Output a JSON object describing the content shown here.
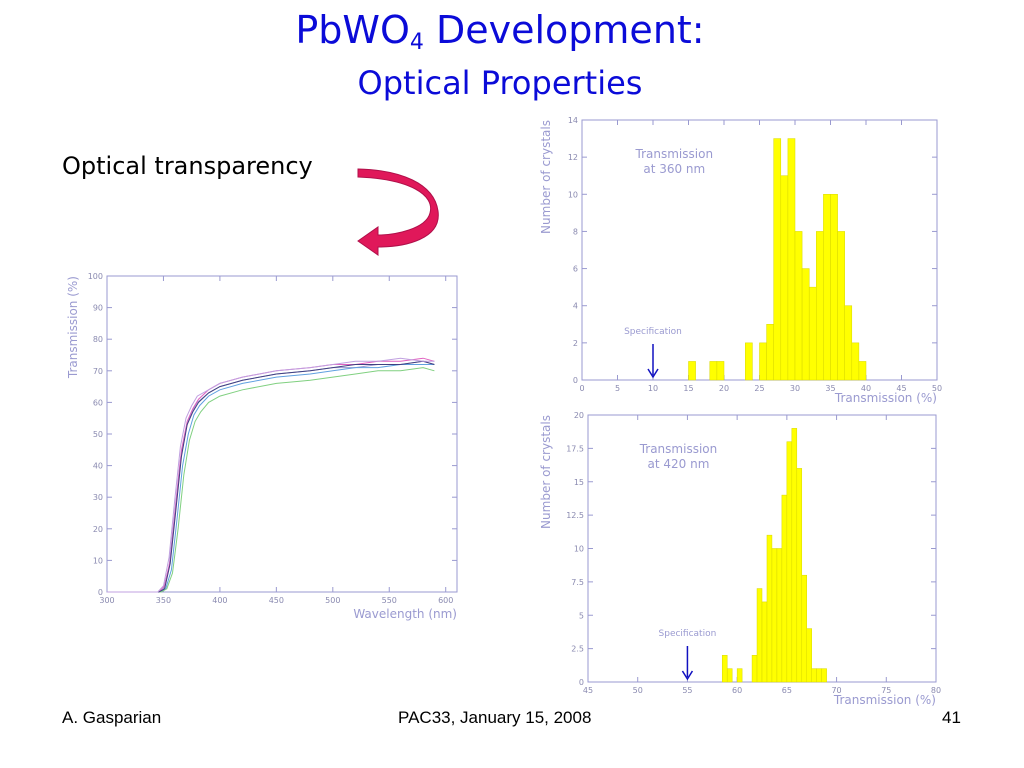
{
  "slide": {
    "title_main": "PbWO",
    "title_sub": "4",
    "title_rest": " Development:",
    "subtitle": "Optical Properties",
    "bullet": "Optical transparency",
    "footer_left": "A. Gasparian",
    "footer_center": "PAC33, January 15, 2008",
    "footer_right": "41"
  },
  "colors": {
    "title": "#0b0bd8",
    "arrow": "#e0185a",
    "bars": "#ffff00",
    "spec_arrow": "#1010c0",
    "axis_text": "#9a9ad0"
  },
  "chart_data": [
    {
      "type": "line",
      "xlabel": "Wavelength (nm)",
      "ylabel": "Transmission (%)",
      "xlim": [
        300,
        610
      ],
      "ylim": [
        0,
        100
      ],
      "xticks": [
        300,
        350,
        400,
        450,
        500,
        550,
        600
      ],
      "yticks": [
        0,
        10,
        20,
        30,
        40,
        50,
        60,
        70,
        80,
        90,
        100
      ],
      "series": [
        {
          "color": "#9a9ad0",
          "x": [
            300,
            340,
            345,
            350,
            355,
            360,
            365,
            370,
            375,
            380,
            390,
            400,
            420,
            450,
            480,
            500,
            520,
            540,
            560,
            580,
            590
          ],
          "y": [
            0,
            0,
            0,
            1,
            8,
            25,
            42,
            52,
            57,
            60,
            63,
            65,
            67,
            69,
            70,
            71,
            71,
            72,
            72,
            73,
            72
          ]
        },
        {
          "color": "#e060c0",
          "x": [
            300,
            340,
            346,
            351,
            356,
            361,
            366,
            371,
            376,
            381,
            390,
            400,
            420,
            450,
            480,
            500,
            520,
            540,
            560,
            580,
            590
          ],
          "y": [
            0,
            0,
            0,
            2,
            10,
            28,
            45,
            54,
            58,
            61,
            64,
            66,
            68,
            70,
            71,
            72,
            72,
            73,
            73,
            74,
            73
          ]
        },
        {
          "color": "#60a0e0",
          "x": [
            300,
            340,
            347,
            352,
            357,
            362,
            367,
            372,
            377,
            382,
            390,
            400,
            420,
            450,
            480,
            500,
            520,
            540,
            560,
            580,
            590
          ],
          "y": [
            0,
            0,
            0,
            1,
            7,
            23,
            40,
            50,
            56,
            59,
            62,
            64,
            66,
            68,
            69,
            70,
            71,
            71,
            72,
            72,
            72
          ]
        },
        {
          "color": "#80d080",
          "x": [
            300,
            340,
            348,
            353,
            358,
            363,
            368,
            373,
            378,
            383,
            390,
            400,
            420,
            450,
            480,
            500,
            520,
            540,
            560,
            580,
            590
          ],
          "y": [
            0,
            0,
            0,
            1,
            6,
            20,
            37,
            48,
            54,
            57,
            60,
            62,
            64,
            66,
            67,
            68,
            69,
            70,
            70,
            71,
            70
          ]
        },
        {
          "color": "#404080",
          "x": [
            300,
            340,
            346,
            351,
            356,
            361,
            366,
            371,
            376,
            381,
            390,
            400,
            420,
            450,
            480,
            500,
            520,
            540,
            560,
            580,
            590
          ],
          "y": [
            0,
            0,
            0,
            1,
            9,
            26,
            43,
            53,
            57,
            60,
            63,
            65,
            67,
            69,
            70,
            71,
            72,
            72,
            72,
            73,
            72
          ]
        },
        {
          "color": "#c0a0e0",
          "x": [
            300,
            340,
            345,
            350,
            355,
            360,
            365,
            370,
            375,
            380,
            390,
            400,
            420,
            450,
            480,
            500,
            520,
            540,
            560,
            580,
            590
          ],
          "y": [
            0,
            0,
            0,
            2,
            11,
            29,
            46,
            55,
            59,
            62,
            64,
            66,
            68,
            70,
            71,
            72,
            73,
            73,
            74,
            73,
            73
          ]
        }
      ]
    },
    {
      "type": "bar",
      "annotation": [
        "Transmission",
        "at 360 nm"
      ],
      "spec_label": "Specification",
      "spec_value": 10,
      "xlabel": "Transmission (%)",
      "ylabel": "Number of crystals",
      "xlim": [
        0,
        50
      ],
      "ylim": [
        0,
        14
      ],
      "xticks": [
        0,
        5,
        10,
        15,
        20,
        25,
        30,
        35,
        40,
        45,
        50
      ],
      "yticks": [
        0,
        2,
        4,
        6,
        8,
        10,
        12,
        14
      ],
      "bin_width": 1,
      "bins": [
        {
          "x": 15,
          "v": 1
        },
        {
          "x": 18,
          "v": 1
        },
        {
          "x": 19,
          "v": 1
        },
        {
          "x": 23,
          "v": 2
        },
        {
          "x": 24,
          "v": 0
        },
        {
          "x": 25,
          "v": 2
        },
        {
          "x": 26,
          "v": 3
        },
        {
          "x": 27,
          "v": 13
        },
        {
          "x": 28,
          "v": 11
        },
        {
          "x": 29,
          "v": 13
        },
        {
          "x": 30,
          "v": 8
        },
        {
          "x": 31,
          "v": 6
        },
        {
          "x": 32,
          "v": 5
        },
        {
          "x": 33,
          "v": 8
        },
        {
          "x": 34,
          "v": 10
        },
        {
          "x": 35,
          "v": 10
        },
        {
          "x": 36,
          "v": 8
        },
        {
          "x": 37,
          "v": 4
        },
        {
          "x": 38,
          "v": 2
        },
        {
          "x": 39,
          "v": 1
        }
      ]
    },
    {
      "type": "bar",
      "annotation": [
        "Transmission",
        "at 420 nm"
      ],
      "spec_label": "Specification",
      "spec_value": 55,
      "xlabel": "Transmission (%)",
      "ylabel": "Number of crystals",
      "xlim": [
        45,
        80
      ],
      "ylim": [
        0,
        20
      ],
      "xticks": [
        45,
        50,
        55,
        60,
        65,
        70,
        75,
        80
      ],
      "yticks": [
        0,
        2.5,
        5,
        7.5,
        10,
        12.5,
        15,
        17.5,
        20
      ],
      "bin_width": 0.5,
      "bins": [
        {
          "x": 58.5,
          "v": 2
        },
        {
          "x": 59,
          "v": 1
        },
        {
          "x": 60,
          "v": 1
        },
        {
          "x": 61.5,
          "v": 2
        },
        {
          "x": 62,
          "v": 7
        },
        {
          "x": 62.5,
          "v": 6
        },
        {
          "x": 63,
          "v": 11
        },
        {
          "x": 63.5,
          "v": 10
        },
        {
          "x": 64,
          "v": 10
        },
        {
          "x": 64.5,
          "v": 14
        },
        {
          "x": 65,
          "v": 18
        },
        {
          "x": 65.5,
          "v": 19
        },
        {
          "x": 66,
          "v": 16
        },
        {
          "x": 66.5,
          "v": 8
        },
        {
          "x": 67,
          "v": 4
        },
        {
          "x": 67.5,
          "v": 1
        },
        {
          "x": 68,
          "v": 1
        },
        {
          "x": 68.5,
          "v": 1
        }
      ]
    }
  ]
}
